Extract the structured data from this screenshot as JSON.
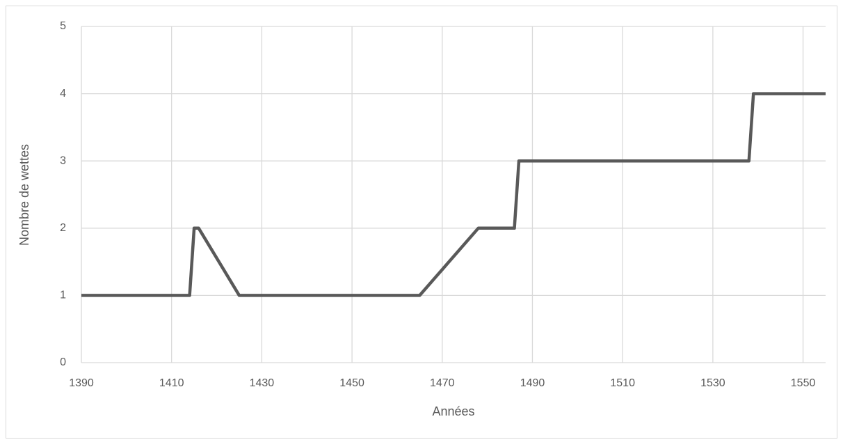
{
  "chart_data": {
    "type": "line",
    "xlabel": "Années",
    "ylabel": "Nombre de wettes",
    "x": [
      1390,
      1414,
      1415,
      1416,
      1425,
      1465,
      1478,
      1486,
      1487,
      1538,
      1539,
      1555
    ],
    "series": [
      {
        "name": "Nombre de wettes",
        "color": "#595959",
        "values": [
          1,
          1,
          2,
          2,
          1,
          1,
          2,
          2,
          3,
          3,
          4,
          4
        ]
      }
    ],
    "xlim": [
      1390,
      1555
    ],
    "xticks": [
      1390,
      1410,
      1430,
      1450,
      1470,
      1490,
      1510,
      1530,
      1550
    ],
    "ylim": [
      0,
      5
    ],
    "yticks": [
      0,
      1,
      2,
      3,
      4,
      5
    ],
    "grid": true
  }
}
